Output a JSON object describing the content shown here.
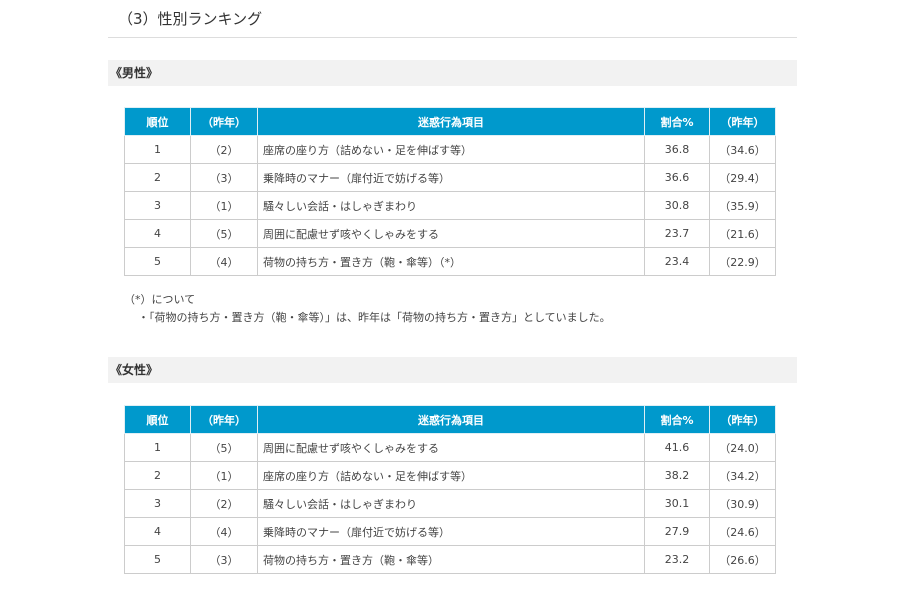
{
  "title": "（3）性別ランキング",
  "columns": [
    "順位",
    "（昨年）",
    "迷惑行為項目",
    "割合%",
    "（昨年）"
  ],
  "male": {
    "heading": "《男性》",
    "rows": [
      [
        "1",
        "（2）",
        "座席の座り方（詰めない・足を伸ばす等）",
        "36.8",
        "（34.6）"
      ],
      [
        "2",
        "（3）",
        "乗降時のマナー（扉付近で妨げる等）",
        "36.6",
        "（29.4）"
      ],
      [
        "3",
        "（1）",
        "騒々しい会話・はしゃぎまわり",
        "30.8",
        "（35.9）"
      ],
      [
        "4",
        "（5）",
        "周囲に配慮せず咳やくしゃみをする",
        "23.7",
        "（21.6）"
      ],
      [
        "5",
        "（4）",
        "荷物の持ち方・置き方（鞄・傘等）（*）",
        "23.4",
        "（22.9）"
      ]
    ]
  },
  "note": {
    "heading": "（*）について",
    "text": "・「荷物の持ち方・置き方（鞄・傘等）」は、昨年は「荷物の持ち方・置き方」としていました。"
  },
  "female": {
    "heading": "《女性》",
    "rows": [
      [
        "1",
        "（5）",
        "周囲に配慮せず咳やくしゃみをする",
        "41.6",
        "（24.0）"
      ],
      [
        "2",
        "（1）",
        "座席の座り方（詰めない・足を伸ばす等）",
        "38.2",
        "（34.2）"
      ],
      [
        "3",
        "（2）",
        "騒々しい会話・はしゃぎまわり",
        "30.1",
        "（30.9）"
      ],
      [
        "4",
        "（4）",
        "乗降時のマナー（扉付近で妨げる等）",
        "27.9",
        "（24.6）"
      ],
      [
        "5",
        "（3）",
        "荷物の持ち方・置き方（鞄・傘等）",
        "23.2",
        "（26.6）"
      ]
    ]
  },
  "colors": {
    "header": "#0099cc",
    "band": "#f2f2f2"
  }
}
